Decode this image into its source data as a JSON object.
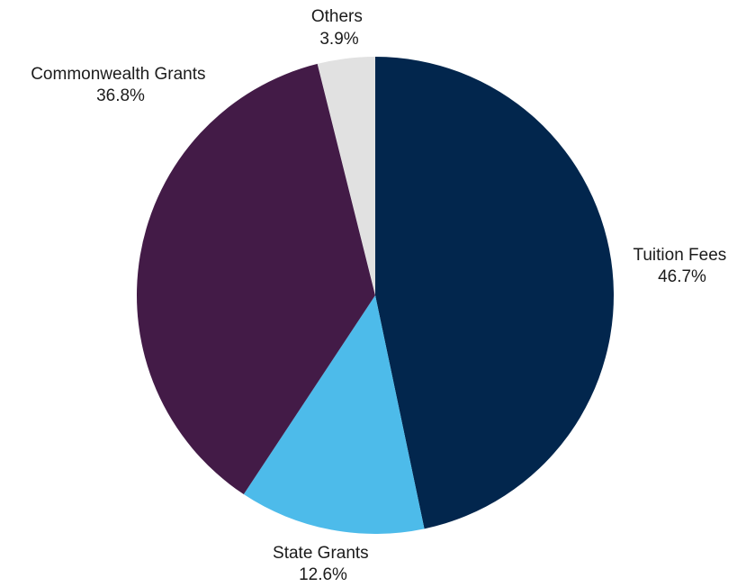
{
  "chart_data": {
    "type": "pie",
    "title": "",
    "start_angle_deg": 0,
    "direction": "clockwise",
    "slices": [
      {
        "label": "Tuition Fees",
        "value": 46.7,
        "display": "46.7%",
        "color": "#02264d"
      },
      {
        "label": "State Grants",
        "value": 12.6,
        "display": "12.6%",
        "color": "#4dbbea"
      },
      {
        "label": "Commonwealth Grants",
        "value": 36.8,
        "display": "36.8%",
        "color": "#431b47"
      },
      {
        "label": "Others",
        "value": 3.9,
        "display": "3.9%",
        "color": "#e1e1e1"
      }
    ]
  }
}
